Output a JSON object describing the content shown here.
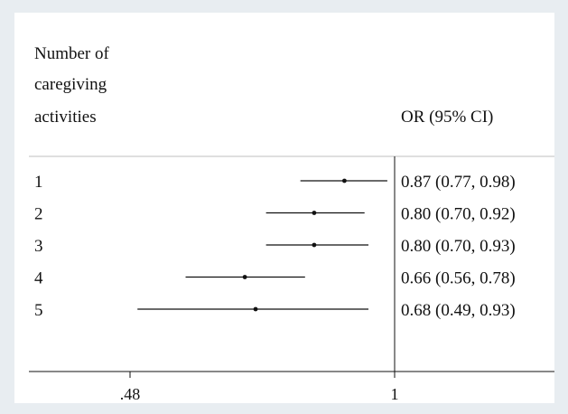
{
  "chart_data": {
    "type": "forest",
    "header": {
      "label_lines": [
        "Number of",
        "caregiving",
        "activities"
      ],
      "value_column": "OR (95% CI)"
    },
    "rows": [
      {
        "label": "1",
        "or": 0.87,
        "lo": 0.77,
        "hi": 0.98,
        "text": "0.87 (0.77, 0.98)"
      },
      {
        "label": "2",
        "or": 0.8,
        "lo": 0.7,
        "hi": 0.92,
        "text": "0.80 (0.70, 0.92)"
      },
      {
        "label": "3",
        "or": 0.8,
        "lo": 0.7,
        "hi": 0.93,
        "text": "0.80 (0.70, 0.93)"
      },
      {
        "label": "4",
        "or": 0.66,
        "lo": 0.56,
        "hi": 0.78,
        "text": "0.66 (0.56, 0.78)"
      },
      {
        "label": "5",
        "or": 0.68,
        "lo": 0.49,
        "hi": 0.93,
        "text": "0.68 (0.49, 0.93)"
      }
    ],
    "xaxis": {
      "scale": "log",
      "range": [
        0.4,
        1.5
      ],
      "ticks": [
        {
          "value": 0.48,
          "label": ".48"
        },
        {
          "value": 1,
          "label": "1"
        }
      ],
      "reference_line": 1
    },
    "colors": {
      "line": "#111111",
      "separator": "#bfbfbf",
      "background": "#e8edf1",
      "panel": "#ffffff"
    }
  }
}
